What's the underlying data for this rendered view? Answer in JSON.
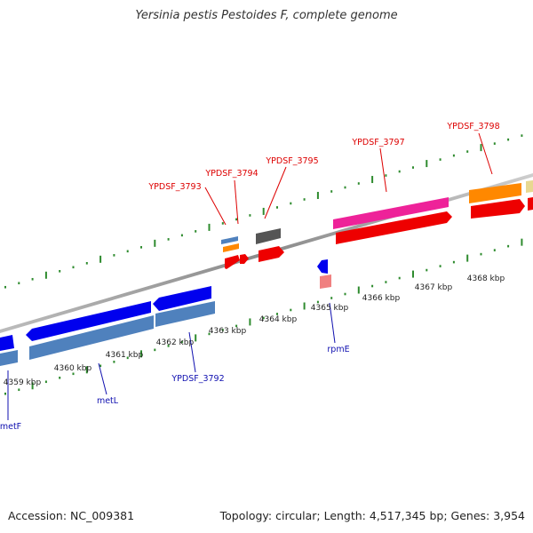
{
  "title": "Yersinia pestis Pestoides F, complete genome",
  "footer": {
    "accession": "Accession: NC_009381",
    "summary": "Topology: circular; Length: 4,517,345 bp; Genes: 3,954"
  },
  "colors": {
    "label_red": "#dd0000",
    "label_blue": "#1010b0",
    "tick_green": "#2e8b2e",
    "backbone": "#888888",
    "gene_blue": "#0000ee",
    "gene_steel": "#4f81bd",
    "gene_red": "#ee0000",
    "gene_pink": "#ee2299",
    "gene_orange": "#ff8800",
    "gene_grey": "#555555"
  },
  "axis_ticks": [
    {
      "label": "4359 kbp"
    },
    {
      "label": "4360 kbp"
    },
    {
      "label": "4361 kbp"
    },
    {
      "label": "4362 kbp"
    },
    {
      "label": "4363 kbp"
    },
    {
      "label": "4364 kbp"
    },
    {
      "label": "4365 kbp"
    },
    {
      "label": "4366 kbp"
    },
    {
      "label": "4367 kbp"
    },
    {
      "label": "4368 kbp"
    }
  ],
  "top_labels": [
    {
      "text": "YPDSF_3793"
    },
    {
      "text": "YPDSF_3794"
    },
    {
      "text": "YPDSF_3795"
    },
    {
      "text": "YPDSF_3797"
    },
    {
      "text": "YPDSF_3798"
    }
  ],
  "bottom_labels": [
    {
      "text": "metF"
    },
    {
      "text": "metL"
    },
    {
      "text": "YPDSF_3792"
    },
    {
      "text": "rpmE"
    }
  ]
}
